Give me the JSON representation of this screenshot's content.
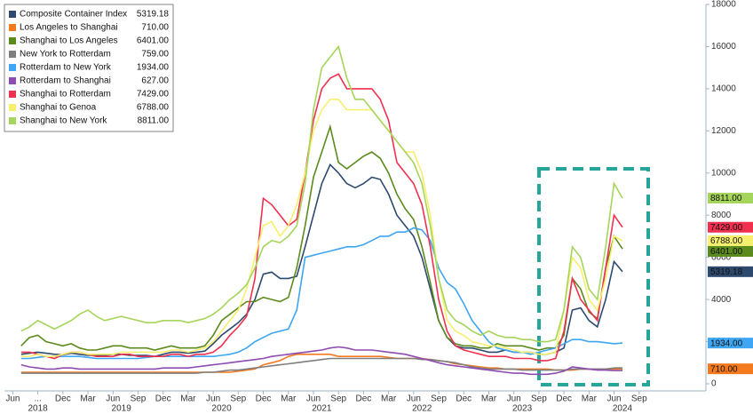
{
  "chart_data": {
    "type": "line",
    "x": [
      "2018-07",
      "2018-08",
      "2018-09",
      "2018-10",
      "2018-11",
      "2018-12",
      "2019-01",
      "2019-02",
      "2019-03",
      "2019-04",
      "2019-05",
      "2019-06",
      "2019-07",
      "2019-08",
      "2019-09",
      "2019-10",
      "2019-11",
      "2019-12",
      "2020-01",
      "2020-02",
      "2020-03",
      "2020-04",
      "2020-05",
      "2020-06",
      "2020-07",
      "2020-08",
      "2020-09",
      "2020-10",
      "2020-11",
      "2020-12",
      "2021-01",
      "2021-02",
      "2021-03",
      "2021-04",
      "2021-05",
      "2021-06",
      "2021-07",
      "2021-08",
      "2021-09",
      "2021-10",
      "2021-11",
      "2021-12",
      "2022-01",
      "2022-02",
      "2022-03",
      "2022-04",
      "2022-05",
      "2022-06",
      "2022-07",
      "2022-08",
      "2022-09",
      "2022-10",
      "2022-11",
      "2022-12",
      "2023-01",
      "2023-02",
      "2023-03",
      "2023-04",
      "2023-05",
      "2023-06",
      "2023-07",
      "2023-08",
      "2023-09",
      "2023-10",
      "2023-11",
      "2023-12",
      "2024-01",
      "2024-02",
      "2024-03",
      "2024-04",
      "2024-05",
      "2024-06",
      "2024-07"
    ],
    "series": [
      {
        "name": "Composite Container Index",
        "color": "#2d4a6e",
        "end_label": true,
        "value_labels": {
          "72": "5319.18"
        },
        "values": [
          1400,
          1450,
          1500,
          1450,
          1400,
          1380,
          1450,
          1400,
          1350,
          1350,
          1350,
          1400,
          1400,
          1350,
          1350,
          1350,
          1300,
          1400,
          1500,
          1500,
          1450,
          1500,
          1550,
          1900,
          2300,
          2600,
          2900,
          3300,
          4000,
          5200,
          5300,
          5000,
          5000,
          5100,
          6500,
          8000,
          9500,
          10400,
          10000,
          9500,
          9300,
          9500,
          9800,
          9700,
          9000,
          8000,
          7500,
          7000,
          6000,
          4500,
          3000,
          2200,
          1800,
          1700,
          1700,
          1600,
          1500,
          1500,
          1600,
          1500,
          1500,
          1500,
          1400,
          1400,
          1500,
          1700,
          3500,
          3600,
          3000,
          2700,
          4000,
          5800,
          5319.18
        ]
      },
      {
        "name": "Los Angeles to Shanghai",
        "color": "#f47a1f",
        "end_label": true,
        "value_labels": {
          "72": "710.00"
        },
        "values": [
          550,
          550,
          550,
          550,
          550,
          550,
          550,
          550,
          550,
          550,
          550,
          550,
          550,
          550,
          550,
          550,
          550,
          550,
          550,
          550,
          550,
          550,
          550,
          550,
          550,
          550,
          600,
          650,
          700,
          900,
          1000,
          1100,
          1300,
          1400,
          1400,
          1400,
          1400,
          1400,
          1300,
          1300,
          1300,
          1300,
          1300,
          1300,
          1250,
          1200,
          1200,
          1200,
          1200,
          1150,
          1100,
          1050,
          950,
          900,
          850,
          800,
          750,
          750,
          700,
          700,
          700,
          700,
          700,
          700,
          650,
          650,
          650,
          700,
          700,
          700,
          700,
          700,
          710
        ]
      },
      {
        "name": "Shanghai to Los Angeles",
        "color": "#5b8a1d",
        "end_label": true,
        "value_labels": {
          "72": "6401.00"
        },
        "values": [
          1800,
          2200,
          2300,
          2000,
          1900,
          1800,
          1900,
          1700,
          1600,
          1600,
          1700,
          1800,
          1800,
          1700,
          1700,
          1700,
          1600,
          1700,
          1800,
          1700,
          1700,
          1700,
          1800,
          2300,
          3000,
          3300,
          3600,
          3900,
          3900,
          4100,
          4000,
          3900,
          4100,
          5500,
          7500,
          9800,
          11000,
          12200,
          10500,
          10200,
          10500,
          10800,
          11000,
          10700,
          10000,
          9000,
          8300,
          7800,
          6500,
          4800,
          3000,
          2200,
          1900,
          1800,
          1800,
          1700,
          1700,
          1900,
          1800,
          1800,
          1800,
          1700,
          1600,
          1700,
          1700,
          2300,
          5000,
          4500,
          3400,
          3100,
          5500,
          7000,
          6401
        ]
      },
      {
        "name": "New York to Rotterdam",
        "color": "#7f7f7f",
        "end_label": false,
        "value_labels": {
          "72": "759.00"
        },
        "values": [
          500,
          500,
          500,
          500,
          500,
          500,
          500,
          500,
          500,
          500,
          500,
          500,
          500,
          500,
          500,
          500,
          500,
          500,
          500,
          500,
          500,
          500,
          550,
          550,
          600,
          650,
          650,
          700,
          750,
          800,
          850,
          900,
          950,
          1000,
          1050,
          1100,
          1150,
          1200,
          1200,
          1200,
          1200,
          1200,
          1200,
          1200,
          1200,
          1200,
          1200,
          1200,
          1150,
          1150,
          1100,
          1050,
          1000,
          900,
          800,
          750,
          700,
          700,
          700,
          700,
          650,
          650,
          650,
          650,
          650,
          650,
          700,
          700,
          700,
          700,
          700,
          750,
          759
        ]
      },
      {
        "name": "Rotterdam to New York",
        "color": "#3ea6f2",
        "end_label": true,
        "value_labels": {
          "72": "1934.00"
        },
        "values": [
          1200,
          1200,
          1250,
          1300,
          1300,
          1300,
          1300,
          1300,
          1250,
          1200,
          1200,
          1200,
          1200,
          1200,
          1200,
          1250,
          1300,
          1300,
          1300,
          1300,
          1300,
          1300,
          1300,
          1300,
          1350,
          1400,
          1500,
          1700,
          2000,
          2200,
          2400,
          2500,
          2600,
          3500,
          6000,
          6100,
          6200,
          6300,
          6400,
          6500,
          6500,
          6600,
          6800,
          7000,
          7000,
          7200,
          7200,
          7400,
          7300,
          6800,
          5500,
          4800,
          4500,
          3800,
          3000,
          2500,
          2000,
          1700,
          1600,
          1500,
          1500,
          1400,
          1500,
          1600,
          1700,
          1900,
          2100,
          2100,
          2000,
          2000,
          1950,
          1900,
          1934
        ]
      },
      {
        "name": "Rotterdam to Shanghai",
        "color": "#8e4bb0",
        "end_label": false,
        "value_labels": {
          "72": "627.00"
        },
        "values": [
          900,
          800,
          750,
          700,
          700,
          750,
          750,
          700,
          700,
          700,
          700,
          700,
          700,
          700,
          700,
          700,
          700,
          750,
          750,
          750,
          750,
          800,
          850,
          900,
          950,
          1000,
          1050,
          1100,
          1150,
          1200,
          1300,
          1350,
          1400,
          1450,
          1500,
          1550,
          1600,
          1700,
          1750,
          1700,
          1600,
          1600,
          1600,
          1550,
          1500,
          1450,
          1400,
          1300,
          1200,
          1100,
          1000,
          900,
          850,
          800,
          750,
          700,
          650,
          600,
          550,
          500,
          500,
          450,
          450,
          450,
          500,
          600,
          800,
          750,
          700,
          650,
          650,
          630,
          627
        ]
      },
      {
        "name": "Shanghai to Rotterdam",
        "color": "#f0304f",
        "end_label": true,
        "value_labels": {
          "72": "7429.00"
        },
        "values": [
          1500,
          1500,
          1400,
          1300,
          1200,
          1400,
          1500,
          1500,
          1400,
          1300,
          1300,
          1300,
          1400,
          1400,
          1300,
          1300,
          1300,
          1300,
          1400,
          1400,
          1300,
          1400,
          1400,
          1500,
          1800,
          2300,
          2700,
          3200,
          5000,
          8800,
          8500,
          8000,
          7500,
          7800,
          10000,
          12500,
          14000,
          14500,
          14700,
          14000,
          14000,
          14000,
          14000,
          13500,
          12500,
          10500,
          10000,
          9500,
          8500,
          6500,
          4000,
          2500,
          1800,
          1600,
          1500,
          1400,
          1300,
          1300,
          1300,
          1200,
          1200,
          1200,
          1100,
          1100,
          1200,
          2500,
          5000,
          4000,
          3500,
          3000,
          5500,
          8000,
          7429
        ]
      },
      {
        "name": "Shanghai to Genoa",
        "color": "#f7ef6e",
        "end_label": true,
        "value_labels": {
          "72": "6788.00"
        },
        "values": [
          1300,
          1300,
          1400,
          1300,
          1300,
          1400,
          1500,
          1500,
          1400,
          1400,
          1400,
          1400,
          1500,
          1500,
          1500,
          1500,
          1500,
          1500,
          1600,
          1600,
          1500,
          1600,
          1700,
          2000,
          2500,
          3000,
          3500,
          4500,
          6000,
          7500,
          7700,
          7000,
          7500,
          8500,
          10000,
          12000,
          13000,
          13500,
          13500,
          13000,
          13000,
          13000,
          13000,
          12500,
          12000,
          11500,
          11000,
          11000,
          10000,
          8000,
          5000,
          3000,
          2500,
          2300,
          2000,
          1900,
          1800,
          1800,
          1700,
          1600,
          1500,
          1500,
          1400,
          1400,
          1500,
          3500,
          6000,
          5500,
          4000,
          3500,
          5000,
          7000,
          6788
        ]
      },
      {
        "name": "Shanghai to New York",
        "color": "#a5d55a",
        "end_label": true,
        "value_labels": {
          "72": "8811.00"
        },
        "values": [
          2500,
          2700,
          3000,
          2800,
          2600,
          2800,
          3000,
          3300,
          3500,
          3200,
          3000,
          3100,
          3200,
          3100,
          3000,
          2900,
          2900,
          3000,
          3000,
          3000,
          2900,
          3000,
          3100,
          3300,
          3600,
          4000,
          4300,
          4700,
          5500,
          6500,
          6800,
          6700,
          7000,
          7500,
          9500,
          13000,
          15000,
          15500,
          16000,
          14500,
          13500,
          13500,
          13000,
          12500,
          12000,
          11500,
          11000,
          10500,
          9500,
          7500,
          5000,
          3500,
          3000,
          2800,
          2500,
          2300,
          2500,
          2300,
          2200,
          2200,
          2100,
          2100,
          2000,
          2000,
          2100,
          3500,
          6500,
          6000,
          4500,
          4000,
          6500,
          9500,
          8811
        ]
      }
    ],
    "xlim": [
      "2018-05",
      "2025-05"
    ],
    "xticks": [
      {
        "value": "2018-06",
        "label": "Jun"
      },
      {
        "value": "2018-09",
        "label": "..."
      },
      {
        "value": "2018-12",
        "label": "Dec"
      },
      {
        "value": "2019-03",
        "label": "Mar"
      },
      {
        "value": "2019-06",
        "label": "Jun"
      },
      {
        "value": "2019-09",
        "label": "Sep"
      },
      {
        "value": "2019-12",
        "label": "Dec"
      },
      {
        "value": "2020-03",
        "label": "Mar"
      },
      {
        "value": "2020-06",
        "label": "Jun"
      },
      {
        "value": "2020-09",
        "label": "Sep"
      },
      {
        "value": "2020-12",
        "label": "Dec"
      },
      {
        "value": "2021-03",
        "label": "Mar"
      },
      {
        "value": "2021-06",
        "label": "Jun"
      },
      {
        "value": "2021-09",
        "label": "Sep"
      },
      {
        "value": "2021-12",
        "label": "Dec"
      },
      {
        "value": "2022-03",
        "label": "Mar"
      },
      {
        "value": "2022-06",
        "label": "Jun"
      },
      {
        "value": "2022-09",
        "label": "Sep"
      },
      {
        "value": "2022-12",
        "label": "Dec"
      },
      {
        "value": "2023-03",
        "label": "Mar"
      },
      {
        "value": "2023-06",
        "label": "Jun"
      },
      {
        "value": "2023-09",
        "label": "Sep"
      },
      {
        "value": "2023-12",
        "label": "Dec"
      },
      {
        "value": "2024-03",
        "label": "Mar"
      },
      {
        "value": "2024-06",
        "label": "Jun"
      },
      {
        "value": "2024-09",
        "label": "Sep"
      }
    ],
    "year_labels": [
      {
        "value": "2018-09",
        "label": "2018"
      },
      {
        "value": "2019-07",
        "label": "2019"
      },
      {
        "value": "2020-07",
        "label": "2020"
      },
      {
        "value": "2021-07",
        "label": "2021"
      },
      {
        "value": "2022-07",
        "label": "2022"
      },
      {
        "value": "2023-07",
        "label": "2023"
      },
      {
        "value": "2024-07",
        "label": "2024"
      }
    ],
    "ylim": [
      0,
      18000
    ],
    "yticks": [
      0,
      2000,
      4000,
      6000,
      8000,
      10000,
      12000,
      14000,
      16000,
      18000
    ],
    "grid": false,
    "legend": "top-left"
  }
}
